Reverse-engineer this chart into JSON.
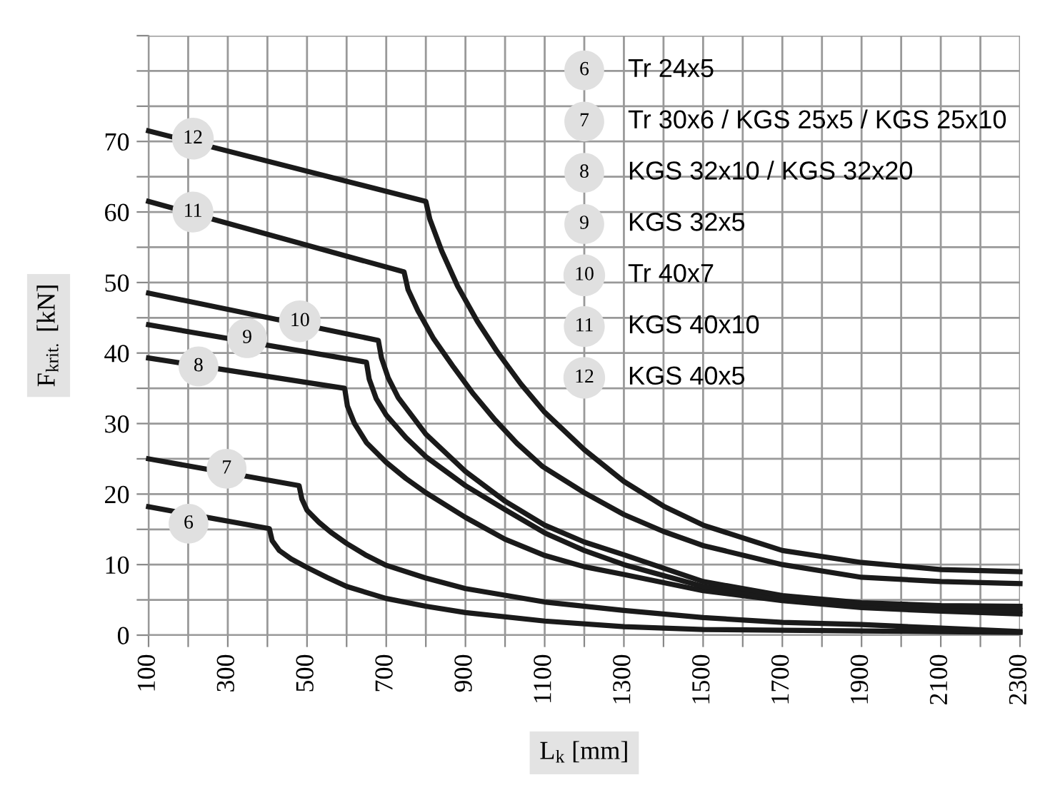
{
  "chart_data": {
    "type": "line",
    "xlabel": "L$_{k}$ [mm]",
    "ylabel": "F$_{krit.}$ [kN]",
    "xlim": [
      100,
      2300
    ],
    "ylim": [
      0,
      85
    ],
    "xticks": [
      100,
      {
        "value": 200,
        "label": null
      },
      300,
      {
        "value": 400,
        "label": null
      },
      500,
      {
        "value": 600,
        "label": null
      },
      700,
      {
        "value": 800,
        "label": null
      },
      900,
      {
        "value": 1000,
        "label": null
      },
      1100,
      {
        "value": 1200,
        "label": null
      },
      1300,
      {
        "value": 1400,
        "label": null
      },
      1500,
      {
        "value": 1600,
        "label": null
      },
      1700,
      {
        "value": 1800,
        "label": null
      },
      1900,
      {
        "value": 2000,
        "label": null
      },
      2100,
      {
        "value": 2200,
        "label": null
      },
      2300
    ],
    "yticks": [
      0,
      {
        "value": 5,
        "label": null
      },
      10,
      {
        "value": 15,
        "label": null
      },
      20,
      {
        "value": 25,
        "label": null
      },
      30,
      {
        "value": 35,
        "label": null
      },
      40,
      {
        "value": 45,
        "label": null
      },
      50,
      {
        "value": 55,
        "label": null
      },
      60,
      {
        "value": 65,
        "label": null
      },
      70,
      {
        "value": 75,
        "label": null
      },
      {
        "value": 80,
        "label": null
      },
      {
        "value": 85,
        "label": null
      }
    ],
    "grid": true,
    "marker": "none",
    "line_style": "solid",
    "series": [
      {
        "color": "#1a1a1a",
        "x": [
          100,
          405,
          412,
          430,
          460,
          500,
          550,
          600,
          700,
          800,
          900,
          1100,
          1300,
          1500,
          1700,
          1900,
          2100,
          2300
        ],
        "values": [
          18.2,
          15.1,
          13.4,
          12,
          10.8,
          9.6,
          8.2,
          6.9,
          5.2,
          4.1,
          3.2,
          2.0,
          1.2,
          0.8,
          0.7,
          0.6,
          0.5,
          0.4
        ]
      },
      {
        "color": "#1a1a1a",
        "x": [
          100,
          480,
          487,
          500,
          530,
          560,
          600,
          650,
          700,
          800,
          900,
          1100,
          1300,
          1500,
          1700,
          1900,
          2100,
          2300
        ],
        "values": [
          25,
          21.2,
          19.3,
          17.7,
          16,
          14.6,
          13,
          11.3,
          9.9,
          8.1,
          6.6,
          4.7,
          3.5,
          2.5,
          1.8,
          1.5,
          1.0,
          0.5
        ]
      },
      {
        "color": "#1a1a1a",
        "x": [
          100,
          595,
          602,
          620,
          650,
          700,
          750,
          800,
          900,
          1000,
          1100,
          1200,
          1300,
          1500,
          1700,
          1900,
          2100,
          2300
        ],
        "values": [
          39.3,
          35,
          32.5,
          30,
          27.3,
          24.5,
          22.2,
          20.2,
          16.7,
          13.6,
          11.3,
          9.7,
          8.6,
          6.3,
          4.9,
          3.9,
          3.4,
          3.0
        ]
      },
      {
        "color": "#1a1a1a",
        "x": [
          100,
          650,
          657,
          675,
          700,
          750,
          800,
          900,
          1000,
          1100,
          1200,
          1300,
          1500,
          1700,
          1900,
          2100,
          2300
        ],
        "values": [
          44,
          38.7,
          36.3,
          33.5,
          31.2,
          28,
          25.3,
          21.2,
          17.8,
          14.5,
          12,
          10.0,
          6.9,
          5.2,
          4.2,
          3.7,
          3.5
        ]
      },
      {
        "color": "#1a1a1a",
        "x": [
          100,
          680,
          688,
          705,
          730,
          800,
          900,
          1000,
          1100,
          1200,
          1300,
          1500,
          1700,
          1900,
          2100,
          2300
        ],
        "values": [
          48.5,
          41.8,
          39.3,
          36.5,
          33.7,
          28.5,
          23.2,
          19,
          15.6,
          13.2,
          11.4,
          7.6,
          5.6,
          4.6,
          4.2,
          4.1
        ]
      },
      {
        "color": "#1a1a1a",
        "x": [
          100,
          745,
          755,
          780,
          820,
          870,
          920,
          975,
          1030,
          1095,
          1200,
          1300,
          1400,
          1500,
          1700,
          1900,
          2100,
          2300
        ],
        "values": [
          61.5,
          51.5,
          49,
          46,
          42,
          38,
          34.2,
          30.5,
          27.2,
          23.9,
          20.2,
          17.1,
          14.7,
          12.7,
          10,
          8.2,
          7.6,
          7.3
        ]
      },
      {
        "color": "#1a1a1a",
        "x": [
          100,
          800,
          810,
          840,
          880,
          930,
          980,
          1040,
          1100,
          1200,
          1300,
          1400,
          1500,
          1700,
          1900,
          2100,
          2300
        ],
        "values": [
          71.5,
          61.5,
          59,
          54.5,
          49.5,
          44.5,
          40.2,
          35.6,
          31.6,
          26.3,
          21.8,
          18.3,
          15.6,
          12,
          10.3,
          9.3,
          9.0
        ]
      }
    ],
    "annotations": [
      {
        "text": "6",
        "x": 201,
        "y": 15.8
      },
      {
        "text": "7",
        "x": 297,
        "y": 23.6
      },
      {
        "text": "8",
        "x": 226,
        "y": 38.1
      },
      {
        "text": "9",
        "x": 349,
        "y": 42.1
      },
      {
        "text": "10",
        "x": 482,
        "y": 44.5
      },
      {
        "text": "11",
        "x": 212,
        "y": 60
      },
      {
        "text": "12",
        "x": 212,
        "y": 70.4
      },
      "Tr 24x5",
      "Tr 30x6 / KGS 25x5 / KGS 25x10",
      "KGS 32x10 / KGS 32x20",
      "KGS 32x5",
      "Tr 40x7",
      "KGS 40x10",
      "KGS 40x5"
    ]
  }
}
